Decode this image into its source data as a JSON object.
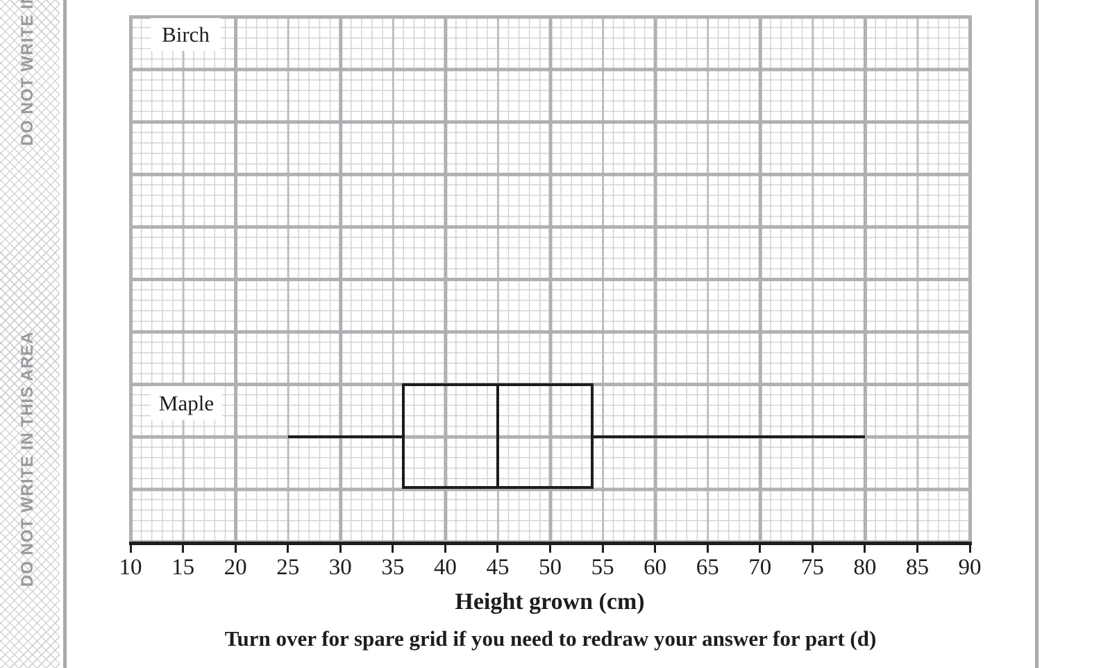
{
  "margin": {
    "text": "DO NOT WRITE IN THIS AREA"
  },
  "footer": {
    "note": "Turn over for spare grid if you need to redraw your answer for part (d)"
  },
  "chart_data": {
    "type": "boxplot",
    "orientation": "horizontal",
    "title": "",
    "xlabel": "Height grown (cm)",
    "x_axis": {
      "min": 10,
      "max": 90,
      "tick_step": 5,
      "ticks": [
        10,
        15,
        20,
        25,
        30,
        35,
        40,
        45,
        50,
        55,
        60,
        65,
        70,
        75,
        80,
        85,
        90
      ]
    },
    "grid": "on",
    "rows": [
      {
        "label": "Birch",
        "box": null
      },
      {
        "label": "Maple",
        "box": {
          "min": 25,
          "q1": 36,
          "median": 45,
          "q3": 54,
          "max": 80
        }
      }
    ]
  },
  "colors": {
    "axis": "#1d1d1b",
    "box_line": "#1d1d1b",
    "grid_major": "#b0b0b4",
    "grid_medium": "#bdbdc1",
    "grid_minor": "#d2d2d6",
    "margin_text": "#9a9a9e",
    "separator_line": "#a9a9ad"
  }
}
